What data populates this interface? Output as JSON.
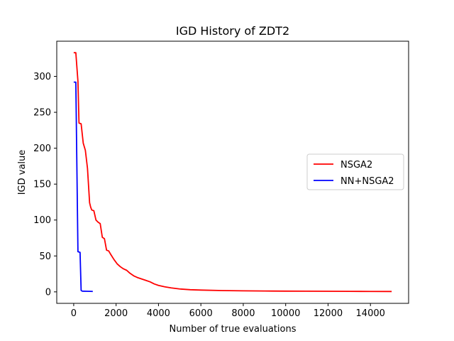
{
  "chart_data": {
    "type": "line",
    "title": "IGD History of ZDT2",
    "xlabel": "Number of true evaluations",
    "ylabel": "IGD value",
    "xlim": [
      -800,
      15800
    ],
    "ylim": [
      -16,
      349
    ],
    "xticks": [
      0,
      2000,
      4000,
      6000,
      8000,
      10000,
      12000,
      14000
    ],
    "yticks": [
      0,
      50,
      100,
      150,
      200,
      250,
      300
    ],
    "grid": false,
    "legend_position": "center-right",
    "series": [
      {
        "name": "NSGA2",
        "color": "#ff0000",
        "points": [
          [
            0,
            333
          ],
          [
            100,
            333
          ],
          [
            200,
            293
          ],
          [
            250,
            235
          ],
          [
            350,
            234
          ],
          [
            450,
            207
          ],
          [
            550,
            197
          ],
          [
            650,
            172
          ],
          [
            750,
            124
          ],
          [
            800,
            118
          ],
          [
            850,
            114
          ],
          [
            950,
            113
          ],
          [
            1050,
            100
          ],
          [
            1150,
            97
          ],
          [
            1250,
            95
          ],
          [
            1350,
            76
          ],
          [
            1450,
            74
          ],
          [
            1550,
            58
          ],
          [
            1650,
            57
          ],
          [
            1750,
            52
          ],
          [
            1900,
            45
          ],
          [
            2050,
            39
          ],
          [
            2200,
            35
          ],
          [
            2350,
            32
          ],
          [
            2500,
            30
          ],
          [
            2650,
            26
          ],
          [
            2850,
            22
          ],
          [
            3000,
            20
          ],
          [
            3200,
            18
          ],
          [
            3400,
            16
          ],
          [
            3600,
            14
          ],
          [
            3800,
            11
          ],
          [
            4000,
            9
          ],
          [
            4300,
            7
          ],
          [
            4600,
            5.5
          ],
          [
            5000,
            4
          ],
          [
            5500,
            3
          ],
          [
            6000,
            2.5
          ],
          [
            7000,
            1.8
          ],
          [
            8000,
            1.4
          ],
          [
            9000,
            1.2
          ],
          [
            10000,
            1.0
          ],
          [
            11000,
            0.9
          ],
          [
            12000,
            0.8
          ],
          [
            13000,
            0.7
          ],
          [
            14000,
            0.6
          ],
          [
            15000,
            0.5
          ]
        ]
      },
      {
        "name": "NN+NSGA2",
        "color": "#0000ff",
        "points": [
          [
            0,
            292
          ],
          [
            100,
            292
          ],
          [
            200,
            56
          ],
          [
            300,
            55
          ],
          [
            350,
            2
          ],
          [
            400,
            1
          ],
          [
            600,
            0.8
          ],
          [
            800,
            0.7
          ],
          [
            900,
            0.6
          ]
        ]
      }
    ]
  }
}
